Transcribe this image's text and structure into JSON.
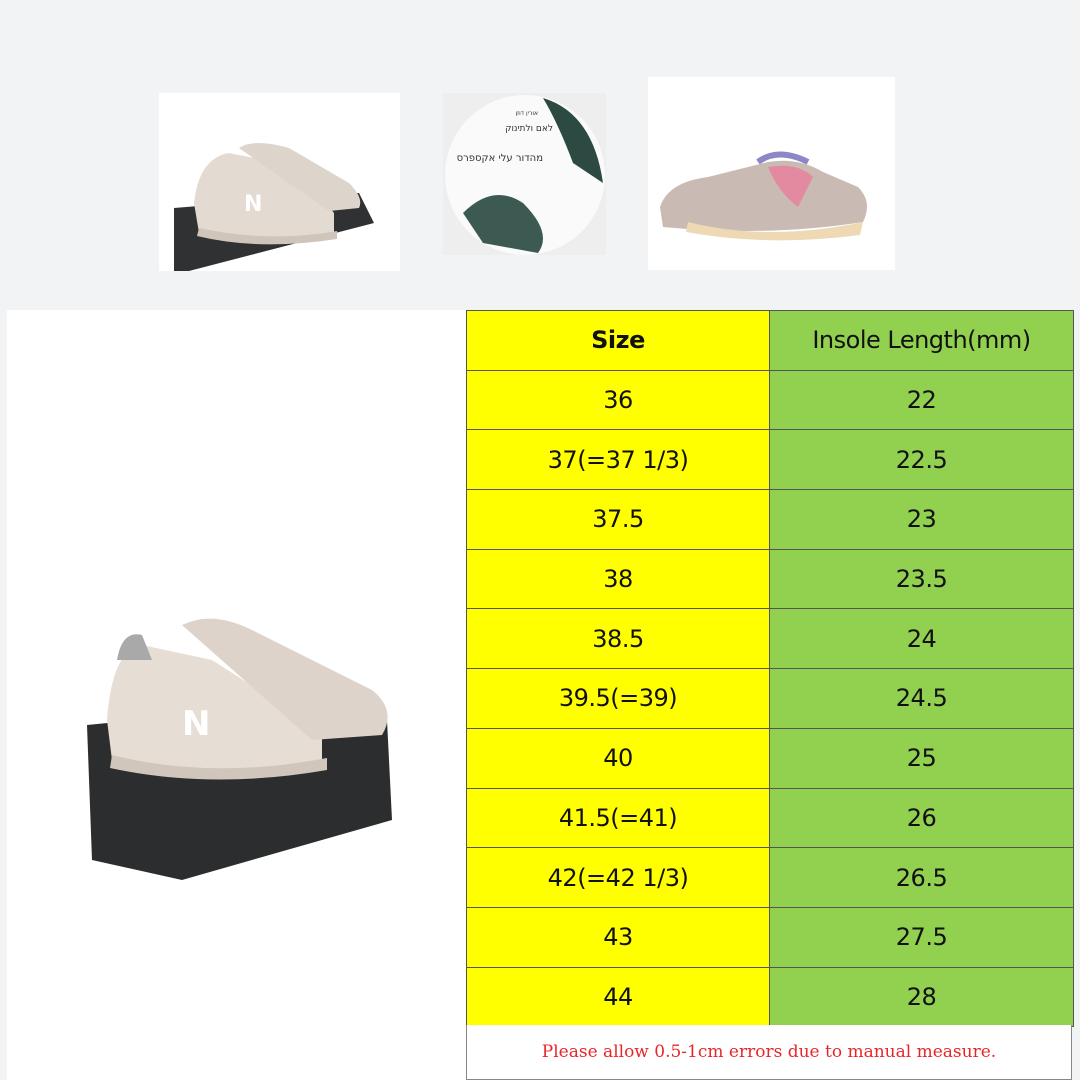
{
  "thumbnails": [
    {
      "name": "beige-sneaker-on-box"
    },
    {
      "name": "disc-artwork",
      "text_lines": [
        "אורין דוזן",
        "לאם ולתינוק",
        "מהדור עלי אקספרס"
      ],
      "signature": "Orin Dozen"
    },
    {
      "name": "pink-grey-sneaker"
    }
  ],
  "size_chart": {
    "headers": [
      "Size",
      "Insole Length(mm)"
    ],
    "rows": [
      [
        "36",
        "22"
      ],
      [
        "37(=37 1/3)",
        "22.5"
      ],
      [
        "37.5",
        "23"
      ],
      [
        "38",
        "23.5"
      ],
      [
        "38.5",
        "24"
      ],
      [
        "39.5(=39)",
        "24.5"
      ],
      [
        "40",
        "25"
      ],
      [
        "41.5(=41)",
        "26"
      ],
      [
        "42(=42 1/3)",
        "26.5"
      ],
      [
        "43",
        "27.5"
      ],
      [
        "44",
        "28"
      ]
    ],
    "note": "Please allow 0.5-1cm errors due to manual measure.",
    "colors": {
      "size_column": "#ffff00",
      "length_column": "#92d050",
      "note": "#e8262a"
    }
  }
}
